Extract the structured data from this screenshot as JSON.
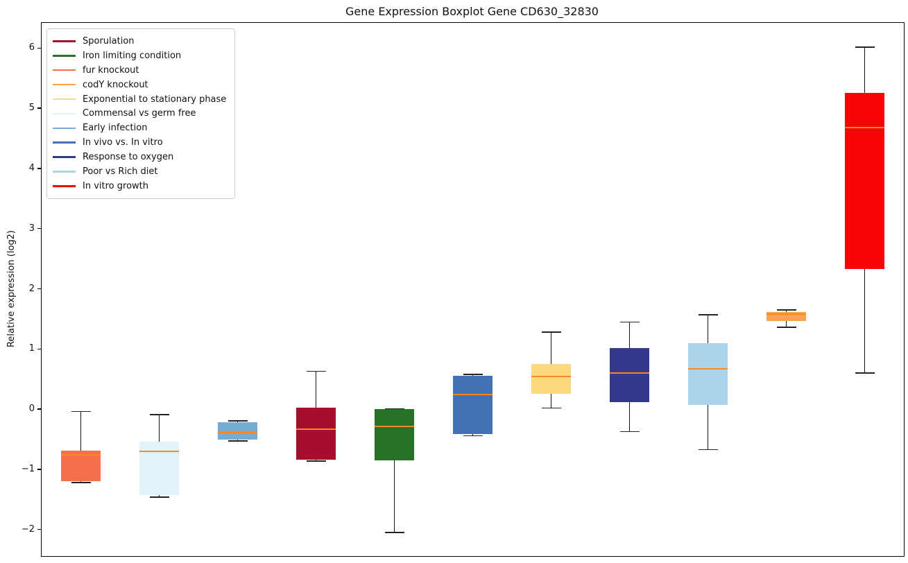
{
  "chart_data": {
    "type": "boxplot",
    "title": "Gene Expression Boxplot Gene CD630_32830",
    "ylabel": "Relative expression (log2)",
    "ylim": [
      -2.43,
      6.43
    ],
    "yticks": [
      6,
      5,
      4,
      3,
      2,
      1,
      0,
      -1,
      -2
    ],
    "grid": false,
    "legend_position": "upper left",
    "median_color": "#fd8720",
    "whisker_color": "#141414",
    "legend": [
      {
        "label": "Sporulation",
        "color": "#a50f2d"
      },
      {
        "label": "Iron limiting condition",
        "color": "#267227"
      },
      {
        "label": "fur knockout",
        "color": "#f3704b"
      },
      {
        "label": "codY knockout",
        "color": "#fda24f"
      },
      {
        "label": "Exponential to stationary phase",
        "color": "#fcd97f"
      },
      {
        "label": "Commensal vs germ free",
        "color": "#e1f2f9"
      },
      {
        "label": "Early infection",
        "color": "#76abd4"
      },
      {
        "label": "In vivo vs. In vitro",
        "color": "#4372b4"
      },
      {
        "label": "Response to oxygen",
        "color": "#333a8c"
      },
      {
        "label": "Poor vs Rich diet",
        "color": "#aad4e8"
      },
      {
        "label": "In vitro growth",
        "color": "#fa0505"
      }
    ],
    "boxes": [
      {
        "label": "fur knockout",
        "color": "#f3704b",
        "whisker_low": -1.21,
        "q1": -1.19,
        "median": -0.75,
        "q3": -0.68,
        "whisker_high": -0.03
      },
      {
        "label": "Commensal vs germ free",
        "color": "#e1f2f9",
        "whisker_low": -1.45,
        "q1": -1.42,
        "median": -0.69,
        "q3": -0.53,
        "whisker_high": -0.08
      },
      {
        "label": "Early infection",
        "color": "#76abd4",
        "whisker_low": -0.52,
        "q1": -0.5,
        "median": -0.38,
        "q3": -0.21,
        "whisker_high": -0.18
      },
      {
        "label": "Sporulation",
        "color": "#a50f2d",
        "whisker_low": -0.85,
        "q1": -0.83,
        "median": -0.32,
        "q3": 0.03,
        "whisker_high": 0.64
      },
      {
        "label": "Iron limiting condition",
        "color": "#267227",
        "whisker_low": -2.04,
        "q1": -0.84,
        "median": -0.28,
        "q3": 0.01,
        "whisker_high": 0.02
      },
      {
        "label": "In vivo vs. In vitro",
        "color": "#4372b4",
        "whisker_low": -0.43,
        "q1": -0.4,
        "median": 0.25,
        "q3": 0.56,
        "whisker_high": 0.59
      },
      {
        "label": "Exponential to stationary phase",
        "color": "#fcd97f",
        "whisker_low": 0.03,
        "q1": 0.27,
        "median": 0.55,
        "q3": 0.76,
        "whisker_high": 1.29
      },
      {
        "label": "Response to oxygen",
        "color": "#333a8c",
        "whisker_low": -0.36,
        "q1": 0.13,
        "median": 0.61,
        "q3": 1.03,
        "whisker_high": 1.46
      },
      {
        "label": "Poor vs Rich diet",
        "color": "#aad4e8",
        "whisker_low": -0.66,
        "q1": 0.08,
        "median": 0.68,
        "q3": 1.11,
        "whisker_high": 1.58
      },
      {
        "label": "codY knockout",
        "color": "#fda24f",
        "whisker_low": 1.37,
        "q1": 1.47,
        "median": 1.59,
        "q3": 1.62,
        "whisker_high": 1.66
      },
      {
        "label": "In vitro growth",
        "color": "#fa0505",
        "whisker_low": 0.61,
        "q1": 2.34,
        "median": 4.69,
        "q3": 5.27,
        "whisker_high": 6.03
      }
    ]
  }
}
